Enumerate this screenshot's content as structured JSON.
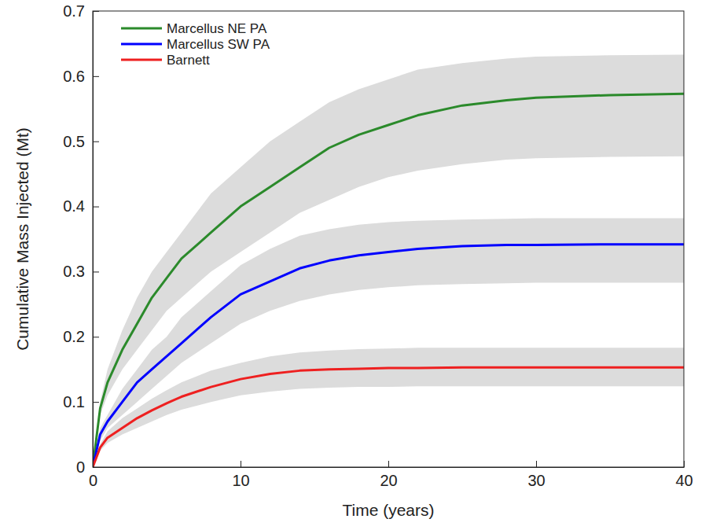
{
  "chart_data": {
    "type": "line",
    "x_label": "Time (years)",
    "y_label": "Cumulative Mass Injected (Mt)",
    "x": [
      0,
      0.5,
      1,
      2,
      3,
      4,
      5,
      6,
      8,
      10,
      12,
      14,
      16,
      18,
      20,
      22,
      25,
      28,
      30,
      35,
      40
    ],
    "xlim": [
      0,
      40
    ],
    "xticks": [
      0,
      10,
      20,
      30,
      40
    ],
    "ylim": [
      0,
      0.7
    ],
    "yticks": [
      0,
      0.1,
      0.2,
      0.3,
      0.4,
      0.5,
      0.6,
      0.7
    ],
    "grid": false,
    "legend": "upper left",
    "series": [
      {
        "name": "Marcellus NE PA",
        "color": "#2b8a2b",
        "values": [
          0,
          0.09,
          0.13,
          0.18,
          0.22,
          0.26,
          0.29,
          0.32,
          0.36,
          0.4,
          0.43,
          0.46,
          0.49,
          0.51,
          0.525,
          0.54,
          0.555,
          0.563,
          0.567,
          0.571,
          0.573
        ],
        "lower": [
          0,
          0.08,
          0.11,
          0.15,
          0.18,
          0.21,
          0.24,
          0.26,
          0.3,
          0.33,
          0.36,
          0.39,
          0.41,
          0.43,
          0.445,
          0.455,
          0.465,
          0.472,
          0.474,
          0.476,
          0.477
        ],
        "upper": [
          0,
          0.1,
          0.15,
          0.21,
          0.26,
          0.3,
          0.33,
          0.36,
          0.42,
          0.46,
          0.5,
          0.53,
          0.56,
          0.58,
          0.595,
          0.61,
          0.62,
          0.627,
          0.63,
          0.632,
          0.633
        ]
      },
      {
        "name": "Marcellus SW PA",
        "color": "#0000ff",
        "values": [
          0,
          0.05,
          0.07,
          0.1,
          0.13,
          0.15,
          0.17,
          0.19,
          0.23,
          0.265,
          0.285,
          0.305,
          0.317,
          0.325,
          0.33,
          0.335,
          0.339,
          0.341,
          0.341,
          0.342,
          0.342
        ],
        "lower": [
          0,
          0.04,
          0.06,
          0.08,
          0.1,
          0.12,
          0.14,
          0.16,
          0.19,
          0.22,
          0.24,
          0.255,
          0.265,
          0.272,
          0.276,
          0.279,
          0.281,
          0.282,
          0.283,
          0.283,
          0.283
        ],
        "upper": [
          0,
          0.06,
          0.08,
          0.12,
          0.15,
          0.18,
          0.2,
          0.23,
          0.27,
          0.31,
          0.335,
          0.355,
          0.365,
          0.372,
          0.376,
          0.378,
          0.38,
          0.381,
          0.382,
          0.382,
          0.382
        ]
      },
      {
        "name": "Barnett",
        "color": "#ee2020",
        "values": [
          0,
          0.03,
          0.045,
          0.06,
          0.075,
          0.087,
          0.098,
          0.108,
          0.123,
          0.135,
          0.143,
          0.148,
          0.15,
          0.151,
          0.152,
          0.152,
          0.153,
          0.153,
          0.153,
          0.153,
          0.153
        ],
        "lower": [
          0,
          0.025,
          0.037,
          0.05,
          0.06,
          0.07,
          0.08,
          0.088,
          0.1,
          0.11,
          0.116,
          0.12,
          0.122,
          0.123,
          0.123,
          0.124,
          0.124,
          0.124,
          0.124,
          0.124,
          0.124
        ],
        "upper": [
          0,
          0.035,
          0.055,
          0.075,
          0.09,
          0.105,
          0.118,
          0.13,
          0.148,
          0.16,
          0.17,
          0.176,
          0.179,
          0.181,
          0.182,
          0.183,
          0.183,
          0.183,
          0.183,
          0.183,
          0.183
        ]
      }
    ]
  }
}
